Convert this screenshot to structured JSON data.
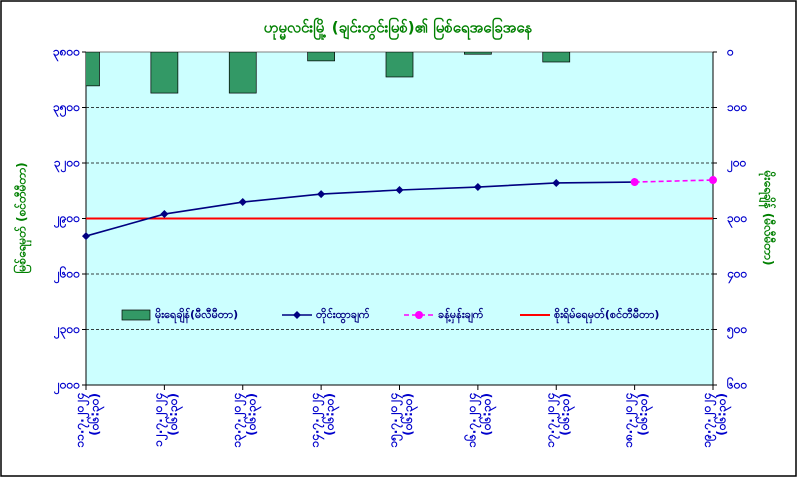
{
  "chart_data": {
    "type": "combo",
    "title": "ဟုမ္မလင်းမြို့ (ချင်းတွင်းမြစ်)၏ မြစ်ရေအခြေအနေ",
    "y_label": "မြစ်ရေမှတ် (စင်တီမီတာ)",
    "y2_label": "မိုးရေချိန် (မီလီမီတာ)",
    "categories": [
      "၁၁.၇.၂၀၂၄",
      "၁၂.၇.၂၀၂၄",
      "၁၃.၇.၂၀၂၄",
      "၁၄.၇.၂၀၂၄",
      "၁၅.၇.၂၀၂၄",
      "၁၆.၇.၂၀၂၄",
      "၁၇.၇.၂၀၂၄",
      "၁၈.၇.၂၀၂၄",
      "၁၉.၇.၂၀၂၄"
    ],
    "category_times": [
      "(၀၆:၃၀)",
      "(၀၆:၃၀)",
      "(၀၆:၃၀)",
      "(၀၆:၃၀)",
      "(၀၆:၃၀)",
      "(၀၆:၃၀)",
      "(၀၆:၃၀)",
      "(၀၆:၃၀)",
      "(၀၆:၃၀)"
    ],
    "series": [
      {
        "name": "မိုးရေချိန်(မီလီမီတာ)",
        "kind": "bar",
        "axis": "y2",
        "color": "#339966",
        "values": [
          61,
          74,
          74,
          16,
          45,
          4,
          18,
          0,
          null
        ]
      },
      {
        "name": "တိုင်းထွာချက်",
        "kind": "line",
        "color": "#000080",
        "values": [
          2805,
          2924,
          2989,
          3032,
          3054,
          3070,
          3092,
          3097,
          null
        ]
      },
      {
        "name": "ခန့်မှန်းချက်",
        "kind": "forecast",
        "color": "#ff00ff",
        "values": [
          null,
          null,
          null,
          null,
          null,
          null,
          null,
          3097,
          3108
        ]
      }
    ],
    "danger_level": {
      "name": "စိုးရိမ်ရေမှတ်(စင်တီမီတာ)",
      "value": 2900,
      "color": "#ff0000"
    },
    "ylim": [
      2000,
      3800
    ],
    "yticks": [
      {
        "value": 2000,
        "label": "၂၀၀၀"
      },
      {
        "value": 2300,
        "label": "၂၃၀၀"
      },
      {
        "value": 2600,
        "label": "၂၆၀၀"
      },
      {
        "value": 2900,
        "label": "၂၉၀၀"
      },
      {
        "value": 3200,
        "label": "၃၂၀၀"
      },
      {
        "value": 3500,
        "label": "၃၅၀၀"
      },
      {
        "value": 3800,
        "label": "၃၈၀၀"
      }
    ],
    "y2lim": [
      0,
      600
    ],
    "y2_reversed": true,
    "y2ticks": [
      {
        "value": 0,
        "label": "၀"
      },
      {
        "value": 100,
        "label": "၁၀၀"
      },
      {
        "value": 200,
        "label": "၂၀၀"
      },
      {
        "value": 300,
        "label": "၃၀၀"
      },
      {
        "value": 400,
        "label": "၄၀၀"
      },
      {
        "value": 500,
        "label": "၅၀၀"
      },
      {
        "value": 600,
        "label": "၆၀၀"
      }
    ],
    "grid": true
  }
}
